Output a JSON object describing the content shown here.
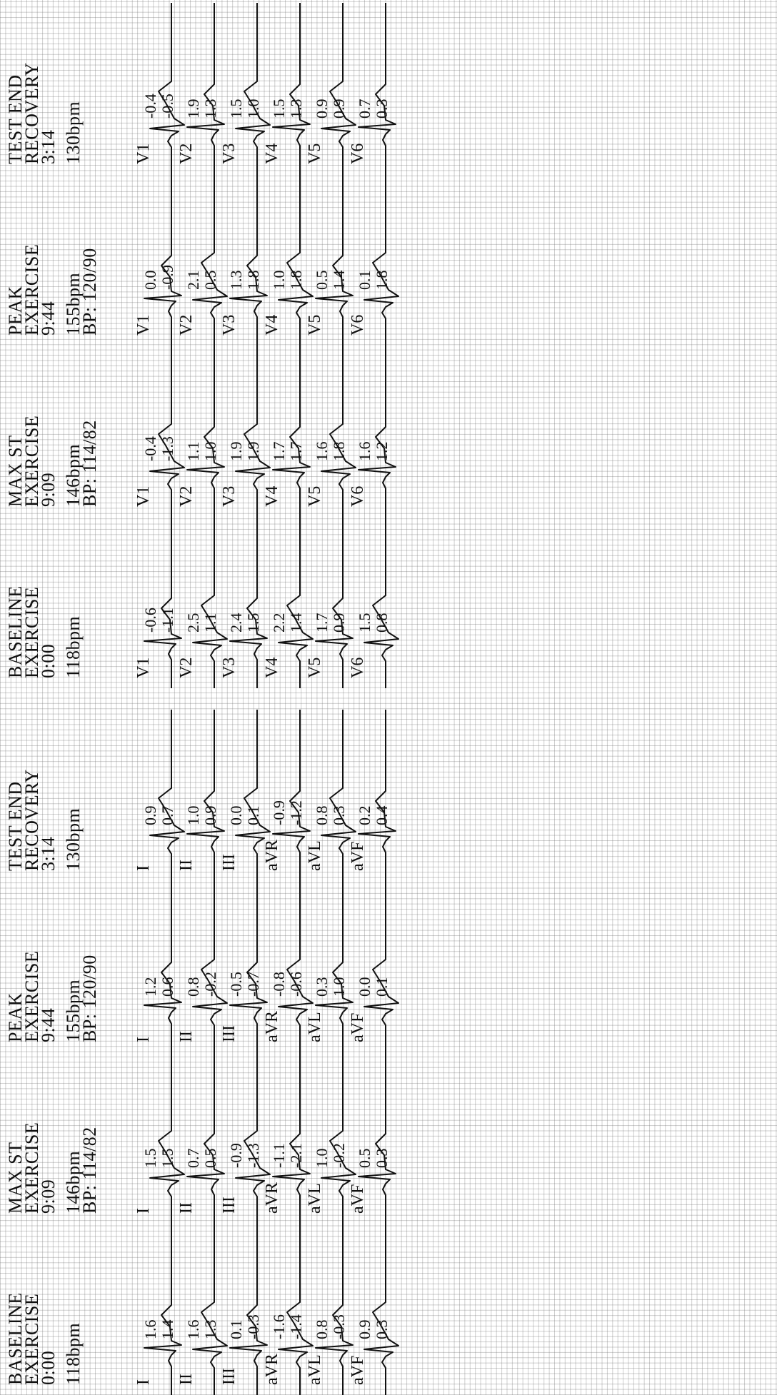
{
  "sections": [
    {
      "name": "limb",
      "panels": [
        {
          "header": [
            "BASELINE",
            "EXERCISE",
            "0:00",
            "",
            "118bpm",
            ""
          ],
          "leads": [
            {
              "name": "I",
              "v1": "1.6",
              "v2": "1.4"
            },
            {
              "name": "II",
              "v1": "1.6",
              "v2": "1.3"
            },
            {
              "name": "III",
              "v1": "0.1",
              "v2": "-0.3"
            },
            {
              "name": "aVR",
              "v1": "-1.6",
              "v2": "-1.4"
            },
            {
              "name": "aVL",
              "v1": "0.8",
              "v2": "-0.3"
            },
            {
              "name": "aVF",
              "v1": "0.9",
              "v2": "0.3"
            }
          ]
        },
        {
          "header": [
            "MAX ST",
            "EXERCISE",
            "9:09",
            "",
            "146bpm",
            "BP: 114/82"
          ],
          "leads": [
            {
              "name": "I",
              "v1": "1.5",
              "v2": "1.5"
            },
            {
              "name": "II",
              "v1": "0.7",
              "v2": "0.5"
            },
            {
              "name": "III",
              "v1": "-0.9",
              "v2": "-1.3"
            },
            {
              "name": "aVR",
              "v1": "-1.1",
              "v2": "-2.1"
            },
            {
              "name": "aVL",
              "v1": "1.0",
              "v2": "-0.2"
            },
            {
              "name": "aVF",
              "v1": "0.5",
              "v2": "0.3"
            }
          ]
        },
        {
          "header": [
            "PEAK",
            "EXERCISE",
            "9:44",
            "",
            "155bpm",
            "BP: 120/90"
          ],
          "leads": [
            {
              "name": "I",
              "v1": "1.2",
              "v2": "0.6"
            },
            {
              "name": "II",
              "v1": "0.8",
              "v2": "-0.2"
            },
            {
              "name": "III",
              "v1": "-0.5",
              "v2": "-0.7"
            },
            {
              "name": "aVR",
              "v1": "-0.8",
              "v2": "-0.6"
            },
            {
              "name": "aVL",
              "v1": "0.3",
              "v2": "1.0"
            },
            {
              "name": "aVF",
              "v1": "0.0",
              "v2": "0.1"
            }
          ]
        },
        {
          "header": [
            "TEST END",
            "RECOVERY",
            "3:14",
            "",
            "130bpm",
            ""
          ],
          "leads": [
            {
              "name": "I",
              "v1": "0.9",
              "v2": "0.7"
            },
            {
              "name": "II",
              "v1": "1.0",
              "v2": "0.9"
            },
            {
              "name": "III",
              "v1": "0.0",
              "v2": "0.1"
            },
            {
              "name": "aVR",
              "v1": "-0.9",
              "v2": "-1.2"
            },
            {
              "name": "aVL",
              "v1": "0.8",
              "v2": "0.3"
            },
            {
              "name": "aVF",
              "v1": "0.2",
              "v2": "0.4"
            }
          ]
        }
      ]
    },
    {
      "name": "precordial",
      "panels": [
        {
          "header": [
            "BASELINE",
            "EXERCISE",
            "0:00",
            "",
            "118bpm",
            ""
          ],
          "leads": [
            {
              "name": "V1",
              "v1": "-0.6",
              "v2": "-1.1"
            },
            {
              "name": "V2",
              "v1": "2.5",
              "v2": "1.1"
            },
            {
              "name": "V3",
              "v1": "2.4",
              "v2": "1.5"
            },
            {
              "name": "V4",
              "v1": "2.2",
              "v2": "1.4"
            },
            {
              "name": "V5",
              "v1": "1.7",
              "v2": "0.9"
            },
            {
              "name": "V6",
              "v1": "1.5",
              "v2": "0.8"
            }
          ]
        },
        {
          "header": [
            "MAX ST",
            "EXERCISE",
            "9:09",
            "",
            "146bpm",
            "BP: 114/82"
          ],
          "leads": [
            {
              "name": "V1",
              "v1": "-0.4",
              "v2": "-1.3"
            },
            {
              "name": "V2",
              "v1": "1.1",
              "v2": "1.0"
            },
            {
              "name": "V3",
              "v1": "1.9",
              "v2": "1.9"
            },
            {
              "name": "V4",
              "v1": "1.7",
              "v2": "1.7"
            },
            {
              "name": "V5",
              "v1": "1.6",
              "v2": "1.8"
            },
            {
              "name": "V6",
              "v1": "1.6",
              "v2": "1.2"
            }
          ]
        },
        {
          "header": [
            "PEAK",
            "EXERCISE",
            "9:44",
            "",
            "155bpm",
            "BP: 120/90"
          ],
          "leads": [
            {
              "name": "V1",
              "v1": "0.0",
              "v2": "-0.9"
            },
            {
              "name": "V2",
              "v1": "2.1",
              "v2": "0.5"
            },
            {
              "name": "V3",
              "v1": "1.3",
              "v2": "1.8"
            },
            {
              "name": "V4",
              "v1": "1.0",
              "v2": "1.8"
            },
            {
              "name": "V5",
              "v1": "0.5",
              "v2": "1.4"
            },
            {
              "name": "V6",
              "v1": "0.1",
              "v2": "1.8"
            }
          ]
        },
        {
          "header": [
            "TEST END",
            "RECOVERY",
            "3:14",
            "",
            "130bpm",
            ""
          ],
          "leads": [
            {
              "name": "V1",
              "v1": "-0.4",
              "v2": "-0.5"
            },
            {
              "name": "V2",
              "v1": "1.9",
              "v2": "1.3"
            },
            {
              "name": "V3",
              "v1": "1.5",
              "v2": "1.0"
            },
            {
              "name": "V4",
              "v1": "1.5",
              "v2": "1.3"
            },
            {
              "name": "V5",
              "v1": "0.9",
              "v2": "0.9"
            },
            {
              "name": "V6",
              "v1": "0.7",
              "v2": "0.3"
            }
          ]
        }
      ]
    }
  ]
}
